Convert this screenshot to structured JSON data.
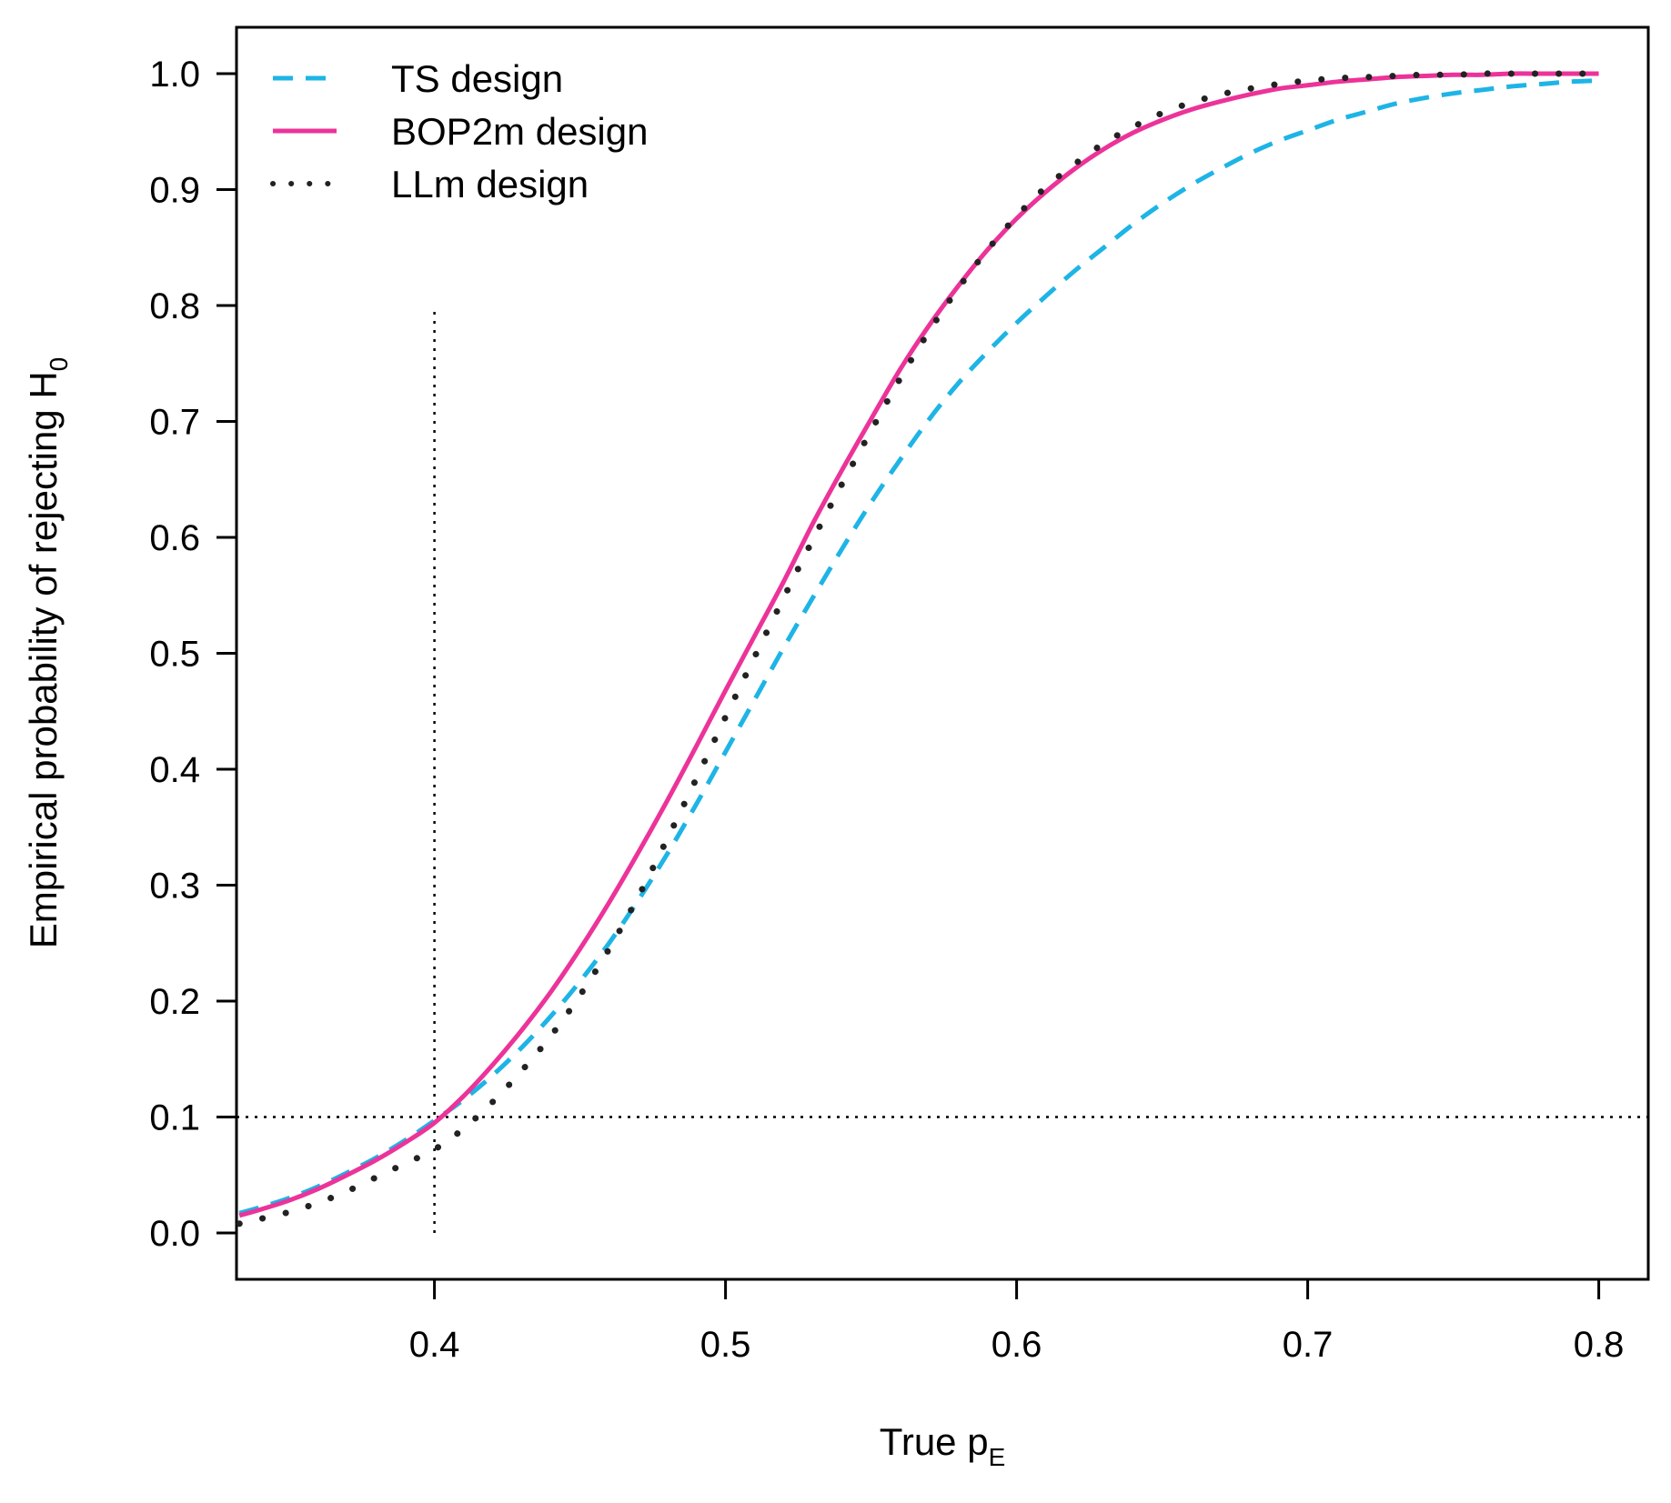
{
  "chart_data": {
    "type": "line",
    "title": "",
    "xlabel": {
      "main": "True p",
      "sub": "E"
    },
    "ylabel": {
      "main": "Empirical probability of rejecting  H",
      "sub": "0"
    },
    "xlim": [
      0.332,
      0.817
    ],
    "ylim": [
      -0.04,
      1.04
    ],
    "xticks": [
      0.4,
      0.5,
      0.6,
      0.7,
      0.8
    ],
    "xtick_labels": [
      "0.4",
      "0.5",
      "0.6",
      "0.7",
      "0.8"
    ],
    "yticks": [
      0.0,
      0.1,
      0.2,
      0.3,
      0.4,
      0.5,
      0.6,
      0.7,
      0.8,
      0.9,
      1.0
    ],
    "ytick_labels": [
      "0.0",
      "0.1",
      "0.2",
      "0.3",
      "0.4",
      "0.5",
      "0.6",
      "0.7",
      "0.8",
      "0.9",
      "1.0"
    ],
    "grid": false,
    "legend_position": "top-left",
    "series": [
      {
        "name": "TS design",
        "style": "dashed",
        "color": "#1EB4E6",
        "x": [
          0.333,
          0.34,
          0.35,
          0.36,
          0.37,
          0.38,
          0.39,
          0.4,
          0.41,
          0.42,
          0.43,
          0.44,
          0.45,
          0.46,
          0.47,
          0.48,
          0.49,
          0.5,
          0.51,
          0.52,
          0.53,
          0.54,
          0.55,
          0.56,
          0.57,
          0.58,
          0.59,
          0.6,
          0.61,
          0.62,
          0.63,
          0.64,
          0.65,
          0.66,
          0.67,
          0.68,
          0.69,
          0.7,
          0.71,
          0.72,
          0.73,
          0.74,
          0.75,
          0.76,
          0.77,
          0.78,
          0.79,
          0.8
        ],
        "y": [
          0.017,
          0.022,
          0.03,
          0.04,
          0.052,
          0.065,
          0.08,
          0.097,
          0.115,
          0.136,
          0.16,
          0.187,
          0.217,
          0.25,
          0.287,
          0.327,
          0.37,
          0.415,
          0.46,
          0.505,
          0.548,
          0.59,
          0.63,
          0.667,
          0.702,
          0.733,
          0.76,
          0.785,
          0.808,
          0.83,
          0.85,
          0.87,
          0.888,
          0.904,
          0.918,
          0.931,
          0.942,
          0.951,
          0.96,
          0.967,
          0.974,
          0.979,
          0.983,
          0.986,
          0.989,
          0.991,
          0.993,
          0.994
        ]
      },
      {
        "name": "BOP2m design",
        "style": "solid",
        "color": "#EC3399",
        "x": [
          0.333,
          0.34,
          0.35,
          0.36,
          0.37,
          0.38,
          0.39,
          0.4,
          0.41,
          0.42,
          0.43,
          0.44,
          0.45,
          0.46,
          0.47,
          0.48,
          0.49,
          0.5,
          0.51,
          0.52,
          0.53,
          0.54,
          0.55,
          0.56,
          0.57,
          0.58,
          0.59,
          0.6,
          0.61,
          0.62,
          0.63,
          0.64,
          0.65,
          0.66,
          0.67,
          0.68,
          0.69,
          0.7,
          0.71,
          0.72,
          0.73,
          0.74,
          0.75,
          0.76,
          0.77,
          0.78,
          0.79,
          0.8
        ],
        "y": [
          0.015,
          0.02,
          0.028,
          0.038,
          0.05,
          0.063,
          0.078,
          0.095,
          0.118,
          0.145,
          0.175,
          0.208,
          0.245,
          0.285,
          0.328,
          0.373,
          0.42,
          0.468,
          0.515,
          0.562,
          0.612,
          0.658,
          0.702,
          0.745,
          0.783,
          0.817,
          0.848,
          0.875,
          0.898,
          0.918,
          0.935,
          0.949,
          0.96,
          0.969,
          0.976,
          0.982,
          0.987,
          0.99,
          0.993,
          0.995,
          0.997,
          0.998,
          0.999,
          0.999,
          1.0,
          1.0,
          1.0,
          1.0
        ]
      },
      {
        "name": "LLm design",
        "style": "dotted",
        "color": "#222222",
        "x": [
          0.333,
          0.34,
          0.35,
          0.36,
          0.37,
          0.38,
          0.39,
          0.4,
          0.41,
          0.42,
          0.43,
          0.44,
          0.45,
          0.46,
          0.47,
          0.48,
          0.49,
          0.5,
          0.51,
          0.52,
          0.53,
          0.54,
          0.55,
          0.56,
          0.57,
          0.58,
          0.59,
          0.6,
          0.61,
          0.62,
          0.63,
          0.64,
          0.65,
          0.66,
          0.67,
          0.68,
          0.69,
          0.7,
          0.71,
          0.72,
          0.73,
          0.74,
          0.75,
          0.76,
          0.77,
          0.78,
          0.79,
          0.8
        ],
        "y": [
          0.008,
          0.012,
          0.018,
          0.026,
          0.036,
          0.048,
          0.06,
          0.072,
          0.09,
          0.113,
          0.14,
          0.17,
          0.205,
          0.245,
          0.29,
          0.34,
          0.392,
          0.445,
          0.497,
          0.548,
          0.598,
          0.646,
          0.692,
          0.737,
          0.778,
          0.815,
          0.848,
          0.877,
          0.902,
          0.922,
          0.94,
          0.954,
          0.966,
          0.975,
          0.982,
          0.987,
          0.991,
          0.994,
          0.996,
          0.997,
          0.998,
          0.999,
          0.999,
          1.0,
          1.0,
          1.0,
          1.0,
          1.0
        ]
      }
    ],
    "reference_lines": [
      {
        "orientation": "horizontal",
        "y": 0.1,
        "style": "dotted",
        "color": "#000000"
      },
      {
        "orientation": "vertical",
        "x": 0.4,
        "y_range": [
          0.0,
          0.8
        ],
        "style": "dotted",
        "color": "#000000"
      }
    ]
  }
}
